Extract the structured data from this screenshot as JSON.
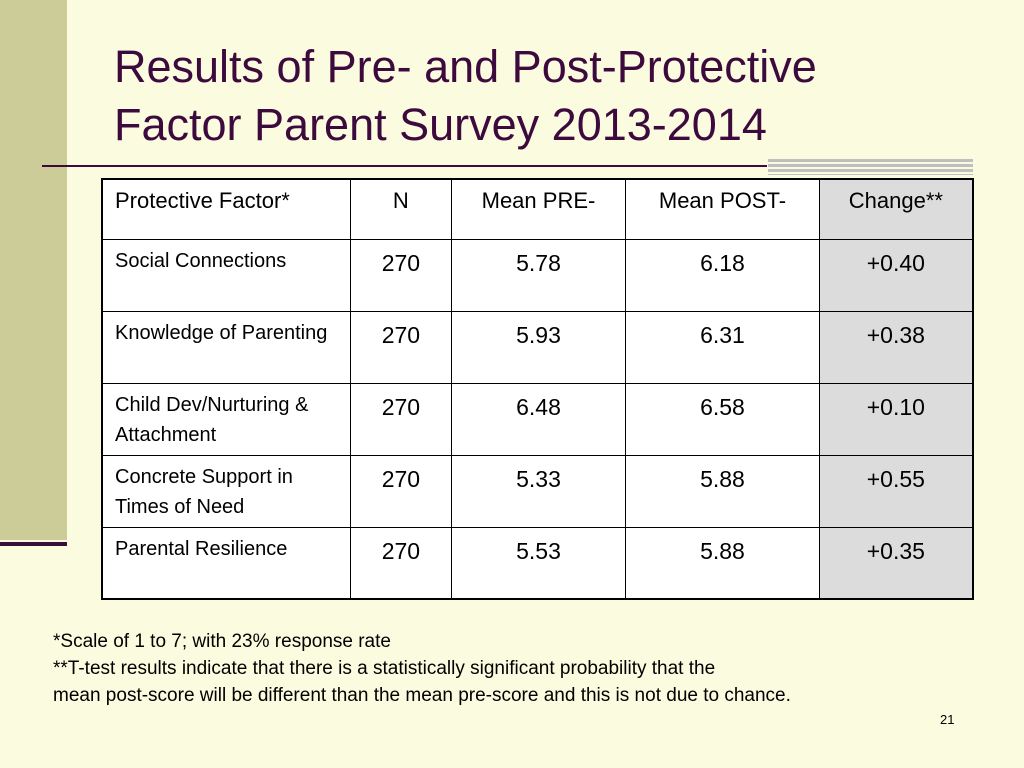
{
  "slide": {
    "title_lines": [
      "Results of Pre- and Post-Protective",
      "Factor Parent Survey 2013-2014"
    ],
    "table": {
      "headers": [
        "Protective Factor*",
        "N",
        "Mean PRE-",
        "Mean POST-",
        "Change**"
      ],
      "rows": [
        {
          "factor": "Social Connections",
          "n": "270",
          "pre": "5.78",
          "post": "6.18",
          "change": "+0.40"
        },
        {
          "factor": "Knowledge of Parenting",
          "n": "270",
          "pre": "5.93",
          "post": "6.31",
          "change": "+0.38"
        },
        {
          "factor": "Child Dev/Nurturing & Attachment",
          "n": "270",
          "pre": "6.48",
          "post": "6.58",
          "change": "+0.10"
        },
        {
          "factor": "Concrete Support in Times of Need",
          "n": "270",
          "pre": "5.33",
          "post": "5.88",
          "change": "+0.55"
        },
        {
          "factor": "Parental Resilience",
          "n": "270",
          "pre": "5.53",
          "post": "5.88",
          "change": "+0.35"
        }
      ]
    },
    "footnotes": [
      "*Scale of 1 to 7; with 23% response rate",
      "**T-test results indicate that there is a statistically significant probability that the",
      "mean post-score will be different than the mean pre-score and this is not due to chance."
    ],
    "page_number": "21"
  },
  "colors": {
    "background": "#fbfbdf",
    "accent_bar": "#cccc99",
    "title_color": "#3d0a3d",
    "change_column_fill": "#dcdcdc"
  }
}
